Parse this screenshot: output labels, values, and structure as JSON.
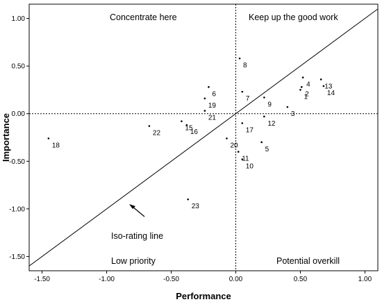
{
  "chart_data": {
    "type": "scatter",
    "title": "",
    "xlabel": "Performance",
    "ylabel": "Importance",
    "xlim": [
      -1.6,
      1.1
    ],
    "ylim": [
      -1.65,
      1.15
    ],
    "x_ticks": [
      -1.5,
      -1.0,
      -0.5,
      0.0,
      0.5,
      1.0
    ],
    "x_tick_labels": [
      "-1.50",
      "-1.00",
      "-0.50",
      "0.00",
      "0.50",
      "1.00"
    ],
    "y_ticks": [
      -1.5,
      -1.0,
      -0.5,
      0.0,
      0.5,
      1.0
    ],
    "y_tick_labels": [
      "-1.50",
      "-1.00",
      "-0.50",
      "0.00",
      "0.50",
      "1.00"
    ],
    "grid": false,
    "quadrant_labels": {
      "top_left": "Concentrate here",
      "top_right": "Keep up the good work",
      "bottom_left": "Low priority",
      "bottom_right": "Potential overkill"
    },
    "iso_line_label": "Iso-rating line",
    "points": [
      {
        "label": "1",
        "x": 0.5,
        "y": 0.25
      },
      {
        "label": "2",
        "x": 0.51,
        "y": 0.28
      },
      {
        "label": "3",
        "x": 0.4,
        "y": 0.07
      },
      {
        "label": "4",
        "x": 0.52,
        "y": 0.38
      },
      {
        "label": "5",
        "x": 0.2,
        "y": -0.3
      },
      {
        "label": "6",
        "x": -0.21,
        "y": 0.28
      },
      {
        "label": "7",
        "x": 0.05,
        "y": 0.23
      },
      {
        "label": "8",
        "x": 0.03,
        "y": 0.58
      },
      {
        "label": "9",
        "x": 0.22,
        "y": 0.17
      },
      {
        "label": "10",
        "x": 0.05,
        "y": -0.48
      },
      {
        "label": "11",
        "x": 0.02,
        "y": -0.4
      },
      {
        "label": "12",
        "x": 0.22,
        "y": -0.03
      },
      {
        "label": "13",
        "x": 0.66,
        "y": 0.36
      },
      {
        "label": "14",
        "x": 0.68,
        "y": 0.29
      },
      {
        "label": "15",
        "x": -0.42,
        "y": -0.08
      },
      {
        "label": "16",
        "x": -0.38,
        "y": -0.12
      },
      {
        "label": "17",
        "x": 0.05,
        "y": -0.1
      },
      {
        "label": "18",
        "x": -1.45,
        "y": -0.26
      },
      {
        "label": "19",
        "x": -0.24,
        "y": 0.16
      },
      {
        "label": "20",
        "x": -0.07,
        "y": -0.26
      },
      {
        "label": "21",
        "x": -0.24,
        "y": 0.03
      },
      {
        "label": "22",
        "x": -0.67,
        "y": -0.13
      },
      {
        "label": "23",
        "x": -0.37,
        "y": -0.9
      }
    ]
  }
}
